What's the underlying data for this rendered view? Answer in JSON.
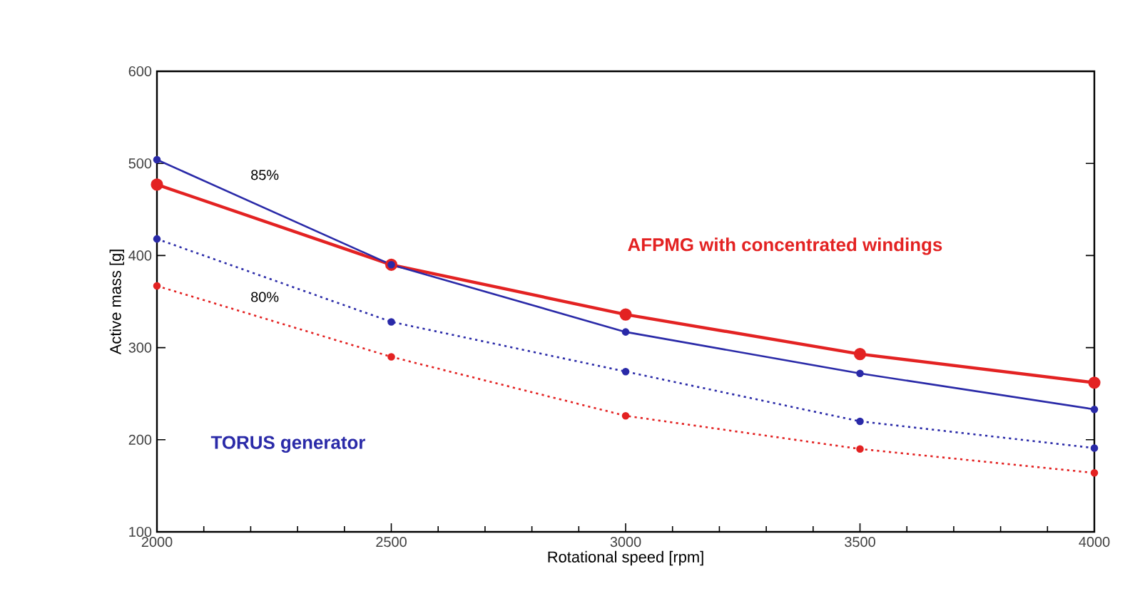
{
  "chart_data": {
    "type": "line",
    "xlabel": "Rotational speed [rpm]",
    "ylabel": "Active mass [g]",
    "x": [
      2000,
      2500,
      3000,
      3500,
      4000
    ],
    "series": [
      {
        "name": "AFPMG with concentrated windings",
        "color": "#e32222",
        "line_style": "solid",
        "values": [
          477,
          390,
          336,
          293,
          262
        ]
      },
      {
        "name": "TORUS generator",
        "color": "#2a2aa8",
        "line_style": "solid",
        "values": [
          504,
          390,
          317,
          272,
          233
        ]
      },
      {
        "color": "#2a2aa8",
        "line_style": "dotted",
        "values": [
          418,
          328,
          274,
          220,
          191
        ]
      },
      {
        "color": "#e32222",
        "line_style": "dotted",
        "values": [
          367,
          290,
          226,
          190,
          164
        ]
      }
    ],
    "xlim": [
      2000,
      4000
    ],
    "xticks": [
      2000,
      2500,
      3000,
      3500,
      4000
    ],
    "ylim": [
      100,
      600
    ],
    "yticks": [
      100,
      200,
      300,
      400,
      500,
      600
    ],
    "marker": "circle",
    "grid": false,
    "legend": false,
    "annotations": [
      "85%",
      "80%"
    ]
  }
}
